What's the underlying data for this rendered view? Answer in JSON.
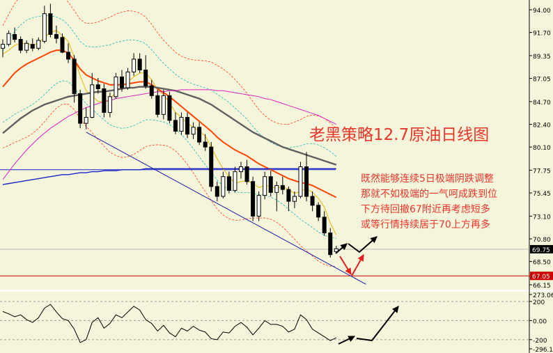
{
  "annotation": {
    "title": "老黑策略12.7原油日线图",
    "notes": [
      "既然能够连续5日极端阴跌调整",
      "那就不如极端的一气呵成跌到位",
      "下方待回撤67附近再考虑短多",
      "或等行情持续居于70上方再多"
    ]
  },
  "colors": {
    "background": "#f5f5dc",
    "bull_body": "#ffffff",
    "bear_body": "#000000",
    "ma_fast": "#e6b800",
    "ma_mid": "#ff4500",
    "ma_slow": "#606060",
    "ma_long": "#e020c0",
    "ma_200": "#1a23c8",
    "trendline": "#1a1aa8",
    "support": "#cc0000",
    "band_outer": "#ff3b1f",
    "band_inner": "#1fb7b7",
    "annotation": "#e8352a",
    "arrow_black": "#000000",
    "arrow_red": "#e02020"
  },
  "chart_data": [
    {
      "type": "candlestick",
      "title": "",
      "ylim": [
        66.15,
        94.0
      ],
      "y_ticks": [
        "94.00",
        "91.70",
        "89.35",
        "87.05",
        "84.70",
        "82.40",
        "80.10",
        "77.75",
        "75.45",
        "73.10",
        "70.80",
        "68.50",
        "66.15"
      ],
      "last_price_label": "69.75",
      "support_label": "67.05",
      "levels": {
        "last_price": 69.75,
        "support": 67.05,
        "horizontal": 77.8
      },
      "candles": [
        [
          90.1,
          91.0,
          89.2,
          90.5
        ],
        [
          90.5,
          91.9,
          90.3,
          91.6
        ],
        [
          91.5,
          92.2,
          90.7,
          91.0
        ],
        [
          91.0,
          91.3,
          89.6,
          89.9
        ],
        [
          89.9,
          90.9,
          89.6,
          90.6
        ],
        [
          90.5,
          91.1,
          89.8,
          90.1
        ],
        [
          90.1,
          91.2,
          89.9,
          90.9
        ],
        [
          90.8,
          94.4,
          90.6,
          93.6
        ],
        [
          93.6,
          94.6,
          91.2,
          91.5
        ],
        [
          91.5,
          92.4,
          90.6,
          91.1
        ],
        [
          91.2,
          91.6,
          89.6,
          89.7
        ],
        [
          89.7,
          90.6,
          88.6,
          89.0
        ],
        [
          89.0,
          89.4,
          84.6,
          85.5
        ],
        [
          85.5,
          85.9,
          82.0,
          82.5
        ],
        [
          82.5,
          84.1,
          81.9,
          83.1
        ],
        [
          83.1,
          87.6,
          83.0,
          86.4
        ],
        [
          86.4,
          87.1,
          85.5,
          86.0
        ],
        [
          86.0,
          86.5,
          83.1,
          83.6
        ],
        [
          83.6,
          85.6,
          83.1,
          85.2
        ],
        [
          85.2,
          87.6,
          85.0,
          87.2
        ],
        [
          87.2,
          87.9,
          85.7,
          86.1
        ],
        [
          86.1,
          88.1,
          85.9,
          87.7
        ],
        [
          87.7,
          89.6,
          87.3,
          89.0
        ],
        [
          89.0,
          89.6,
          87.6,
          87.9
        ],
        [
          87.9,
          89.4,
          86.0,
          86.3
        ],
        [
          86.3,
          86.9,
          85.0,
          85.3
        ],
        [
          85.3,
          85.9,
          83.1,
          83.4
        ],
        [
          83.4,
          85.9,
          82.9,
          85.3
        ],
        [
          85.3,
          85.7,
          82.5,
          82.8
        ],
        [
          82.8,
          83.6,
          81.4,
          81.7
        ],
        [
          81.7,
          83.6,
          81.3,
          83.1
        ],
        [
          83.1,
          83.6,
          81.0,
          81.4
        ],
        [
          81.4,
          82.6,
          80.9,
          82.1
        ],
        [
          82.1,
          82.6,
          80.3,
          80.6
        ],
        [
          80.6,
          81.4,
          79.7,
          80.1
        ],
        [
          80.1,
          80.6,
          75.6,
          76.1
        ],
        [
          76.1,
          76.6,
          74.6,
          75.1
        ],
        [
          75.1,
          77.6,
          74.9,
          77.1
        ],
        [
          77.1,
          77.6,
          75.4,
          75.7
        ],
        [
          75.7,
          78.1,
          75.5,
          77.6
        ],
        [
          77.6,
          78.6,
          76.9,
          78.1
        ],
        [
          78.1,
          78.8,
          76.3,
          76.6
        ],
        [
          76.6,
          77.1,
          72.6,
          73.1
        ],
        [
          73.1,
          75.6,
          72.6,
          75.2
        ],
        [
          75.2,
          77.6,
          74.8,
          77.1
        ],
        [
          77.1,
          77.7,
          75.1,
          75.5
        ],
        [
          75.5,
          76.6,
          73.6,
          76.2
        ],
        [
          76.2,
          77.1,
          75.3,
          75.8
        ],
        [
          75.8,
          76.1,
          73.6,
          74.6
        ],
        [
          74.6,
          75.6,
          73.9,
          75.1
        ],
        [
          75.1,
          78.6,
          74.9,
          78.1
        ],
        [
          78.1,
          79.6,
          74.6,
          75.1
        ],
        [
          75.1,
          75.6,
          73.6,
          74.2
        ],
        [
          74.2,
          74.5,
          72.6,
          73.0
        ],
        [
          73.0,
          73.6,
          71.1,
          71.4
        ],
        [
          71.4,
          71.9,
          68.9,
          69.2
        ],
        [
          69.5,
          70.1,
          69.3,
          69.8
        ]
      ],
      "series": [
        {
          "name": "",
          "values": [
            89.5,
            89.9,
            90.4,
            90.6,
            90.6,
            90.4,
            90.6,
            91.2,
            91.7,
            91.9,
            91.4,
            90.8,
            89.2,
            87.3,
            85.8,
            85.3,
            84.7,
            84.7,
            84.9,
            85.7,
            86.2,
            86.7,
            87.2,
            87.6,
            87.6,
            86.9,
            85.9,
            85.4,
            84.6,
            83.6,
            83.1,
            82.5,
            82.1,
            81.7,
            81.2,
            80.1,
            78.9,
            77.9,
            77.1,
            76.4,
            76.6,
            76.7,
            76.4,
            76.0,
            76.2,
            76.1,
            75.9,
            76.1,
            75.8,
            75.4,
            75.6,
            75.9,
            75.5,
            74.9,
            74.0,
            72.4,
            71.2
          ]
        },
        {
          "name": "",
          "values": [
            86.2,
            86.9,
            87.6,
            88.1,
            88.5,
            88.8,
            89.1,
            89.4,
            89.7,
            89.9,
            89.9,
            89.6,
            88.9,
            88.0,
            87.4,
            87.1,
            86.8,
            86.6,
            86.4,
            86.4,
            86.4,
            86.5,
            86.6,
            86.7,
            86.7,
            86.4,
            86.0,
            85.6,
            85.2,
            84.7,
            84.2,
            83.7,
            83.2,
            82.7,
            82.2,
            81.7,
            81.1,
            80.6,
            80.2,
            79.8,
            79.5,
            79.2,
            78.8,
            78.4,
            78.1,
            77.8,
            77.5,
            77.2,
            76.9,
            76.7,
            76.5,
            76.4,
            76.2,
            75.9,
            75.6,
            75.3,
            75.0
          ]
        },
        {
          "name": "",
          "values": [
            81.5,
            82.0,
            82.5,
            83.0,
            83.4,
            83.8,
            84.1,
            84.4,
            84.6,
            84.8,
            85.0,
            85.2,
            85.3,
            85.4,
            85.5,
            85.6,
            85.7,
            85.7,
            85.8,
            85.9,
            86.0,
            86.1,
            86.1,
            86.2,
            86.2,
            86.2,
            86.1,
            86.0,
            85.9,
            85.8,
            85.6,
            85.4,
            85.2,
            85.0,
            84.7,
            84.4,
            84.0,
            83.6,
            83.2,
            82.8,
            82.4,
            82.0,
            81.6,
            81.3,
            81.0,
            80.7,
            80.4,
            80.1,
            79.9,
            79.7,
            79.5,
            79.3,
            79.1,
            78.9,
            78.7,
            78.5,
            78.3
          ]
        },
        {
          "name": "",
          "values": [
            76.8,
            77.6,
            78.4,
            79.1,
            79.8,
            80.4,
            81.0,
            81.5,
            82.0,
            82.4,
            82.8,
            83.2,
            83.5,
            83.8,
            84.1,
            84.3,
            84.5,
            84.7,
            84.8,
            85.0,
            85.1,
            85.2,
            85.3,
            85.4,
            85.5,
            85.6,
            85.7,
            85.7,
            85.8,
            85.8,
            85.9,
            85.9,
            85.9,
            85.9,
            85.9,
            85.9,
            85.8,
            85.8,
            85.7,
            85.6,
            85.5,
            85.4,
            85.3,
            85.2,
            85.0,
            84.9,
            84.7,
            84.5,
            84.3,
            84.1,
            83.9,
            83.7,
            83.5,
            83.3,
            83.0,
            82.7,
            82.4
          ]
        },
        {
          "name": "",
          "values": [
            76.3,
            76.4,
            76.5,
            76.6,
            76.7,
            76.8,
            76.9,
            77.0,
            77.1,
            77.2,
            77.3,
            77.3,
            77.4,
            77.5,
            77.5,
            77.6,
            77.6,
            77.7,
            77.7,
            77.7,
            77.8,
            77.8,
            77.8,
            77.8,
            77.9,
            77.9,
            77.9,
            77.9,
            77.9,
            77.9,
            77.9,
            77.9,
            77.9,
            77.9,
            77.9,
            77.9,
            77.9,
            77.9,
            77.9,
            77.9,
            77.9,
            77.9,
            77.9,
            77.9,
            77.9,
            77.9,
            77.9,
            77.9,
            77.9,
            77.9,
            77.9,
            77.9,
            77.9,
            77.9,
            77.9,
            77.9,
            77.9
          ]
        }
      ]
    },
    {
      "type": "line",
      "title": "",
      "ylim": [
        -296.14,
        273.06
      ],
      "y_ticks": [
        "273.06",
        "200",
        "0.00",
        "-200",
        "-296.14"
      ],
      "series": [
        {
          "name": "",
          "values": [
            95,
            70,
            40,
            60,
            10,
            -20,
            30,
            130,
            170,
            90,
            20,
            0,
            -90,
            -230,
            -200,
            -20,
            30,
            -80,
            -30,
            60,
            30,
            90,
            150,
            110,
            10,
            -30,
            -110,
            -50,
            -130,
            -170,
            -80,
            -110,
            -60,
            -100,
            -120,
            -190,
            -200,
            -120,
            -130,
            -60,
            -20,
            -70,
            -150,
            -80,
            0,
            -40,
            -40,
            -60,
            -120,
            -90,
            60,
            10,
            -90,
            -130,
            -170,
            -210,
            -180
          ]
        }
      ]
    }
  ]
}
